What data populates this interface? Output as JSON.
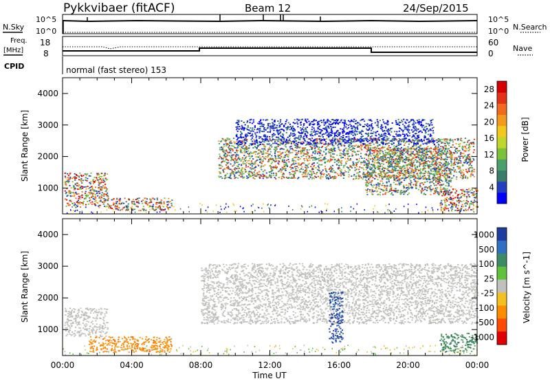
{
  "header": {
    "radar": "Pykkvibaer (fitACF)",
    "beam": "Beam 12",
    "date": "24/Sep/2015"
  },
  "sky_panel": {
    "left_label": "N.Sky",
    "right_label": "N.Search",
    "left_ticks": [
      "10^5",
      "10^0"
    ],
    "right_ticks": [
      "10^5",
      "10^0"
    ]
  },
  "freq_panel": {
    "left_label_1": "Freq.",
    "left_label_2": "[MHz]",
    "right_label": "Nave",
    "left_ticks": [
      "18",
      "8"
    ],
    "right_ticks": [
      "60",
      "0"
    ]
  },
  "cpid": {
    "label": "CPID",
    "text": "normal (fast stereo) 153"
  },
  "time_axis": {
    "label": "Time UT",
    "ticks": [
      "00:00",
      "04:00",
      "08:00",
      "12:00",
      "16:00",
      "20:00",
      "00:00"
    ]
  },
  "colors": {
    "velocity_ground_scatter": "#c0c0bc",
    "velocity_positive_strong": "#1f3d9e",
    "velocity_negative": "#ff8c00",
    "power_high": "#e00000",
    "power_low": "#0000ff"
  },
  "chart_data": [
    {
      "type": "heatmap",
      "title": "",
      "xlabel": "Time UT",
      "ylabel": "Slant Range [km]",
      "xlim": [
        0,
        24
      ],
      "ylim": [
        180,
        4500
      ],
      "yticks": [
        "1000",
        "2000",
        "3000",
        "4000"
      ],
      "colorbar": {
        "label": "Power [dB]",
        "ticks": [
          "4",
          "8",
          "12",
          "16",
          "20",
          "24",
          "28"
        ],
        "colors": [
          "#0000ff",
          "#2040c0",
          "#3a7c6a",
          "#49a06a",
          "#7cc238",
          "#c0d62a",
          "#f2c81e",
          "#f29a1e",
          "#f26a1e",
          "#e43218",
          "#d40000"
        ]
      },
      "regions": [
        {
          "t0": 0.1,
          "t1": 2.6,
          "r0": 400,
          "r1": 1500,
          "level": "high"
        },
        {
          "t0": 2.6,
          "t1": 6.3,
          "r0": 300,
          "r1": 700,
          "level": "high"
        },
        {
          "t0": 9.0,
          "t1": 23.8,
          "r0": 1300,
          "r1": 2600,
          "level": "mid"
        },
        {
          "t0": 10.0,
          "t1": 21.5,
          "r0": 2400,
          "r1": 3200,
          "level": "low"
        },
        {
          "t0": 17.5,
          "t1": 22.5,
          "r0": 800,
          "r1": 2300,
          "level": "mid"
        },
        {
          "t0": 21.8,
          "t1": 24.0,
          "r0": 300,
          "r1": 1000,
          "level": "high"
        }
      ]
    },
    {
      "type": "heatmap",
      "title": "",
      "xlabel": "Time UT",
      "ylabel": "Slant Range [km]",
      "xlim": [
        0,
        24
      ],
      "ylim": [
        180,
        4500
      ],
      "yticks": [
        "1000",
        "2000",
        "3000",
        "4000"
      ],
      "colorbar": {
        "label": "Velocity [m s^-1]",
        "ticks": [
          "1000",
          "500",
          "100",
          "25",
          "-25",
          "-100",
          "-500",
          "-1000"
        ],
        "colors": [
          "#1f3d9e",
          "#2f6fc4",
          "#3e8a64",
          "#5fc23a",
          "#c0c0bc",
          "#f2c020",
          "#ff8c00",
          "#ff4a00",
          "#e00000"
        ]
      },
      "regions": [
        {
          "t0": 0.1,
          "t1": 2.6,
          "r0": 800,
          "r1": 1700,
          "level": "ground"
        },
        {
          "t0": 1.5,
          "t1": 6.3,
          "r0": 300,
          "r1": 800,
          "level": "negative"
        },
        {
          "t0": 8.0,
          "t1": 24.0,
          "r0": 1200,
          "r1": 3100,
          "level": "ground"
        },
        {
          "t0": 15.4,
          "t1": 16.2,
          "r0": 600,
          "r1": 2200,
          "level": "positive"
        },
        {
          "t0": 21.8,
          "t1": 24.0,
          "r0": 300,
          "r1": 900,
          "level": "positive_weak"
        }
      ]
    }
  ]
}
